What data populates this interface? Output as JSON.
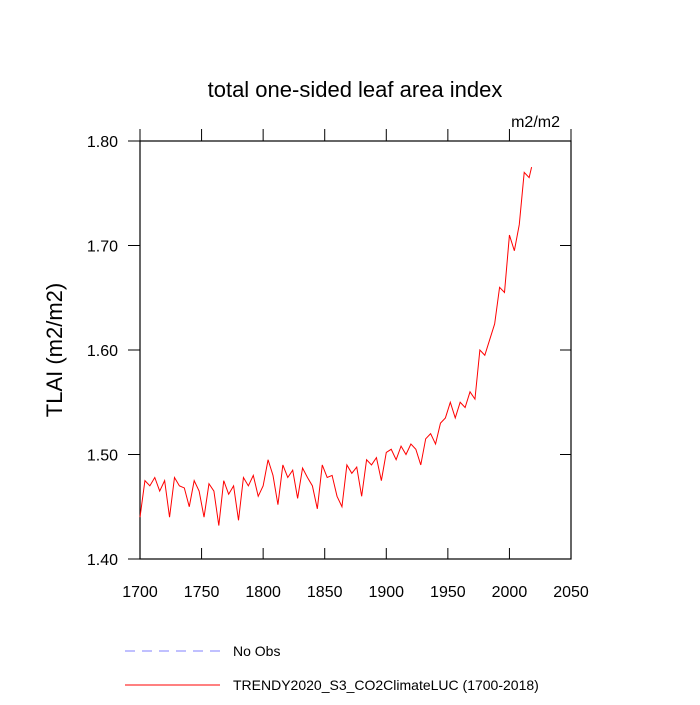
{
  "chart_data": {
    "type": "line",
    "title": "total one-sided leaf area index",
    "units": "m2/m2",
    "y_label": "TLAI  (m2/m2)",
    "xlim": [
      1700,
      2050
    ],
    "xticks": [
      1700,
      1750,
      1800,
      1850,
      1900,
      1950,
      2000,
      2050
    ],
    "ylim": [
      1.4,
      1.8
    ],
    "yticks": [
      {
        "value": 1.4,
        "label": "1.40"
      },
      {
        "value": 1.5,
        "label": "1.50"
      },
      {
        "value": 1.6,
        "label": "1.60"
      },
      {
        "value": 1.7,
        "label": "1.70"
      },
      {
        "value": 1.8,
        "label": "1.80"
      }
    ],
    "reference": {
      "name": "No Obs",
      "color": "#8080ff",
      "dash": true
    },
    "x": [
      1700,
      1704,
      1708,
      1712,
      1716,
      1720,
      1724,
      1728,
      1732,
      1736,
      1740,
      1744,
      1748,
      1752,
      1756,
      1760,
      1764,
      1768,
      1772,
      1776,
      1780,
      1784,
      1788,
      1792,
      1796,
      1800,
      1804,
      1808,
      1812,
      1816,
      1820,
      1824,
      1828,
      1832,
      1836,
      1840,
      1844,
      1848,
      1852,
      1856,
      1860,
      1864,
      1868,
      1872,
      1876,
      1880,
      1884,
      1888,
      1892,
      1896,
      1900,
      1904,
      1908,
      1912,
      1916,
      1920,
      1924,
      1928,
      1932,
      1936,
      1940,
      1944,
      1948,
      1952,
      1956,
      1960,
      1964,
      1968,
      1972,
      1976,
      1980,
      1984,
      1988,
      1992,
      1996,
      2000,
      2004,
      2008,
      2012,
      2016,
      2018
    ],
    "series": [
      {
        "name": "TRENDY2020_S3_CO2ClimateLUC (1700-2018)",
        "color": "#ff0000",
        "values": [
          1.44,
          1.475,
          1.47,
          1.478,
          1.465,
          1.475,
          1.44,
          1.478,
          1.47,
          1.468,
          1.45,
          1.475,
          1.465,
          1.44,
          1.472,
          1.465,
          1.432,
          1.475,
          1.462,
          1.47,
          1.437,
          1.478,
          1.47,
          1.48,
          1.46,
          1.47,
          1.495,
          1.48,
          1.452,
          1.49,
          1.478,
          1.485,
          1.458,
          1.487,
          1.478,
          1.47,
          1.448,
          1.49,
          1.478,
          1.48,
          1.46,
          1.45,
          1.49,
          1.482,
          1.488,
          1.46,
          1.495,
          1.49,
          1.497,
          1.475,
          1.502,
          1.505,
          1.495,
          1.508,
          1.5,
          1.51,
          1.505,
          1.49,
          1.515,
          1.52,
          1.51,
          1.53,
          1.535,
          1.55,
          1.535,
          1.55,
          1.545,
          1.56,
          1.553,
          1.6,
          1.595,
          1.61,
          1.625,
          1.66,
          1.655,
          1.71,
          1.695,
          1.72,
          1.77,
          1.765,
          1.775
        ]
      }
    ]
  }
}
